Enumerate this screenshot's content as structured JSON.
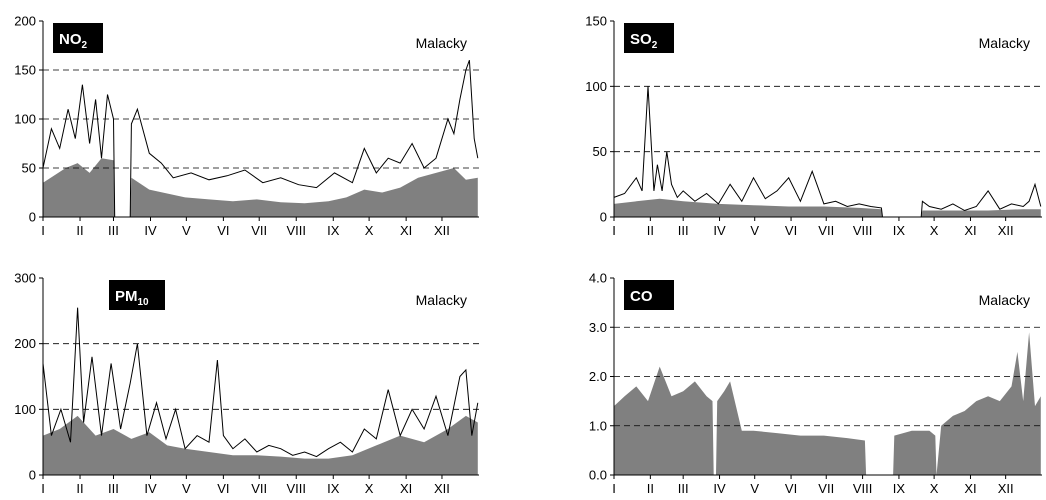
{
  "months": [
    "I",
    "II",
    "III",
    "IV",
    "V",
    "VI",
    "VII",
    "VIII",
    "IX",
    "X",
    "XI",
    "XII"
  ],
  "chart_data": [
    {
      "type": "area",
      "pollutant_main": "NO",
      "pollutant_sub": "2",
      "station": "Malacky",
      "ylim": [
        0,
        200
      ],
      "yticks": [
        "0",
        "50",
        "100",
        "150",
        "200"
      ],
      "ytick_values": [
        0,
        50,
        100,
        150,
        200
      ],
      "series": [
        {
          "style": "filled-gray",
          "x": [
            1,
            10,
            20,
            30,
            40,
            50,
            60,
            61,
            74,
            75,
            90,
            105,
            120,
            140,
            160,
            180,
            200,
            220,
            240,
            255,
            270,
            285,
            300,
            315,
            330,
            345,
            355,
            365
          ],
          "values": [
            35,
            42,
            50,
            55,
            45,
            60,
            58,
            0,
            0,
            40,
            28,
            24,
            20,
            18,
            16,
            18,
            15,
            14,
            16,
            20,
            28,
            25,
            30,
            40,
            45,
            50,
            38,
            40
          ]
        },
        {
          "style": "black-line",
          "x": [
            1,
            8,
            15,
            22,
            28,
            34,
            40,
            45,
            50,
            55,
            60,
            61,
            74,
            75,
            80,
            90,
            100,
            110,
            125,
            140,
            155,
            170,
            185,
            200,
            215,
            230,
            245,
            260,
            270,
            280,
            290,
            300,
            310,
            320,
            330,
            340,
            345,
            350,
            355,
            358,
            362,
            365
          ],
          "values": [
            50,
            90,
            70,
            110,
            80,
            135,
            75,
            120,
            60,
            125,
            100,
            0,
            0,
            95,
            110,
            65,
            55,
            40,
            45,
            38,
            42,
            48,
            35,
            40,
            33,
            30,
            45,
            35,
            70,
            45,
            60,
            55,
            75,
            50,
            60,
            100,
            85,
            120,
            150,
            160,
            80,
            60
          ]
        }
      ]
    },
    {
      "type": "area",
      "pollutant_main": "SO",
      "pollutant_sub": "2",
      "station": "Malacky",
      "ylim": [
        0,
        150
      ],
      "yticks": [
        "0",
        "50",
        "100",
        "150"
      ],
      "ytick_values": [
        0,
        50,
        100,
        150
      ],
      "series": [
        {
          "style": "filled-gray",
          "x": [
            1,
            20,
            40,
            60,
            90,
            120,
            150,
            180,
            210,
            229,
            230,
            263,
            264,
            290,
            320,
            350,
            365
          ],
          "values": [
            10,
            12,
            14,
            12,
            10,
            9,
            8,
            8,
            7,
            6,
            0,
            0,
            5,
            5,
            5,
            6,
            6
          ]
        },
        {
          "style": "black-line",
          "x": [
            1,
            10,
            20,
            25,
            30,
            35,
            38,
            42,
            46,
            50,
            55,
            60,
            70,
            80,
            90,
            100,
            110,
            120,
            130,
            140,
            150,
            160,
            170,
            180,
            190,
            200,
            210,
            220,
            229,
            230,
            263,
            264,
            270,
            280,
            290,
            300,
            310,
            320,
            330,
            340,
            350,
            355,
            360,
            365
          ],
          "values": [
            15,
            18,
            30,
            20,
            100,
            20,
            40,
            20,
            50,
            25,
            15,
            20,
            12,
            18,
            10,
            25,
            12,
            30,
            14,
            20,
            30,
            12,
            35,
            10,
            12,
            8,
            10,
            8,
            7,
            0,
            0,
            12,
            8,
            6,
            10,
            5,
            8,
            20,
            6,
            10,
            8,
            12,
            25,
            8
          ]
        }
      ]
    },
    {
      "type": "area",
      "pollutant_main": "PM",
      "pollutant_sub": "10",
      "station": "Malacky",
      "ylim": [
        0,
        300
      ],
      "yticks": [
        "0",
        "100",
        "200",
        "300"
      ],
      "ytick_values": [
        0,
        100,
        200,
        300
      ],
      "series": [
        {
          "style": "filled-gray",
          "x": [
            1,
            15,
            30,
            45,
            60,
            75,
            90,
            105,
            120,
            140,
            160,
            180,
            200,
            220,
            240,
            260,
            280,
            300,
            320,
            340,
            355,
            365
          ],
          "values": [
            60,
            70,
            90,
            60,
            70,
            55,
            65,
            45,
            40,
            35,
            30,
            30,
            28,
            25,
            25,
            30,
            45,
            60,
            50,
            70,
            90,
            80
          ]
        },
        {
          "style": "black-line",
          "x": [
            1,
            8,
            16,
            24,
            30,
            35,
            42,
            50,
            58,
            66,
            74,
            80,
            88,
            96,
            104,
            112,
            120,
            130,
            140,
            147,
            152,
            160,
            170,
            180,
            190,
            200,
            210,
            220,
            230,
            240,
            250,
            260,
            270,
            280,
            290,
            300,
            310,
            320,
            330,
            340,
            350,
            355,
            360,
            365
          ],
          "values": [
            170,
            60,
            100,
            50,
            255,
            80,
            180,
            60,
            170,
            70,
            140,
            200,
            60,
            110,
            55,
            100,
            40,
            60,
            50,
            175,
            60,
            40,
            55,
            35,
            45,
            40,
            30,
            35,
            28,
            40,
            50,
            35,
            70,
            55,
            130,
            60,
            100,
            70,
            120,
            60,
            150,
            160,
            60,
            110
          ]
        }
      ]
    },
    {
      "type": "area",
      "pollutant_main": "CO",
      "pollutant_sub": "",
      "station": "Malacky",
      "ylim": [
        0,
        4.0
      ],
      "yticks": [
        "0.0",
        "1.0",
        "2.0",
        "3.0",
        "4.0"
      ],
      "ytick_values": [
        0,
        1,
        2,
        3,
        4
      ],
      "series": [
        {
          "style": "filled-gray",
          "x": [
            1,
            10,
            20,
            30,
            40,
            50,
            60,
            70,
            80,
            85,
            86,
            88,
            89,
            95,
            100,
            110,
            120,
            140,
            160,
            180,
            200,
            215,
            216,
            239,
            240,
            255,
            270,
            275,
            276,
            280,
            290,
            300,
            310,
            320,
            330,
            340,
            345,
            350,
            355,
            360,
            365
          ],
          "values": [
            1.4,
            1.6,
            1.8,
            1.5,
            2.2,
            1.6,
            1.7,
            1.9,
            1.6,
            1.5,
            0,
            0,
            1.5,
            1.7,
            1.9,
            0.9,
            0.9,
            0.85,
            0.8,
            0.8,
            0.75,
            0.7,
            0,
            0,
            0.8,
            0.9,
            0.9,
            0.8,
            0,
            1.0,
            1.2,
            1.3,
            1.5,
            1.6,
            1.5,
            1.8,
            2.5,
            1.5,
            2.9,
            1.4,
            1.6
          ]
        }
      ]
    }
  ]
}
